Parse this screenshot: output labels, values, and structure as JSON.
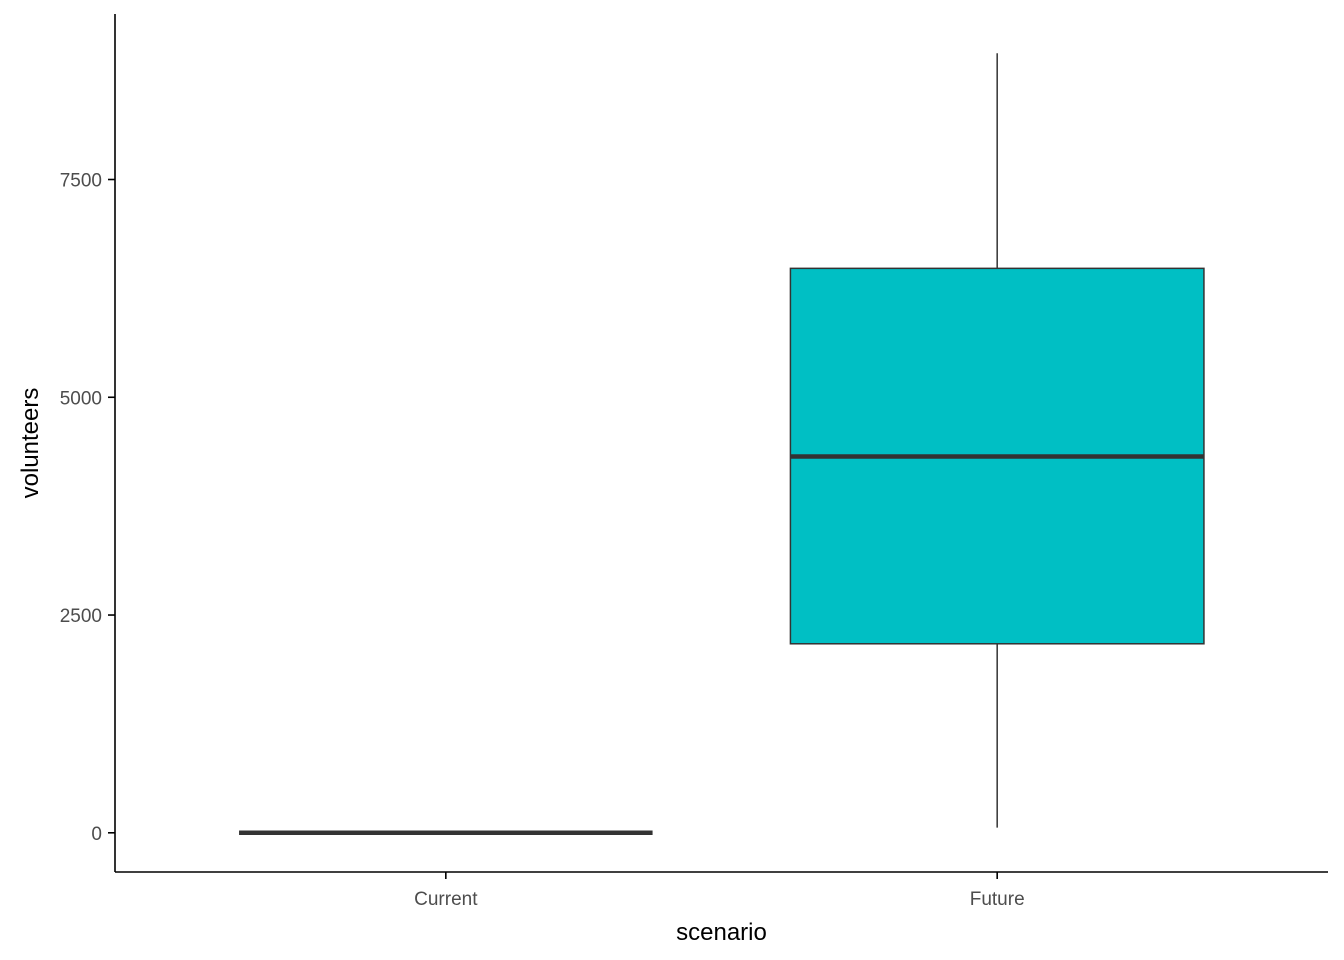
{
  "chart_data": {
    "type": "boxplot",
    "title": "",
    "xlabel": "scenario",
    "ylabel": "volunteers",
    "categories": [
      "Current",
      "Future"
    ],
    "yticks": [
      0,
      2500,
      5000,
      7500
    ],
    "ytick_labels": [
      "0",
      "2500",
      "5000",
      "7500"
    ],
    "ylim": [
      -450,
      9400
    ],
    "grid": false,
    "legend": "none",
    "boxes": [
      {
        "category": "Current",
        "whisker_low": 0,
        "q1": 0,
        "median": 0,
        "q3": 0,
        "whisker_high": 0,
        "fill": "#f8766d"
      },
      {
        "category": "Future",
        "whisker_low": 60,
        "q1": 2170,
        "median": 4320,
        "q3": 6480,
        "whisker_high": 8950,
        "fill": "#00bfc4"
      }
    ]
  },
  "colors": {
    "box_outline": "#333333",
    "axis": "#000000"
  }
}
